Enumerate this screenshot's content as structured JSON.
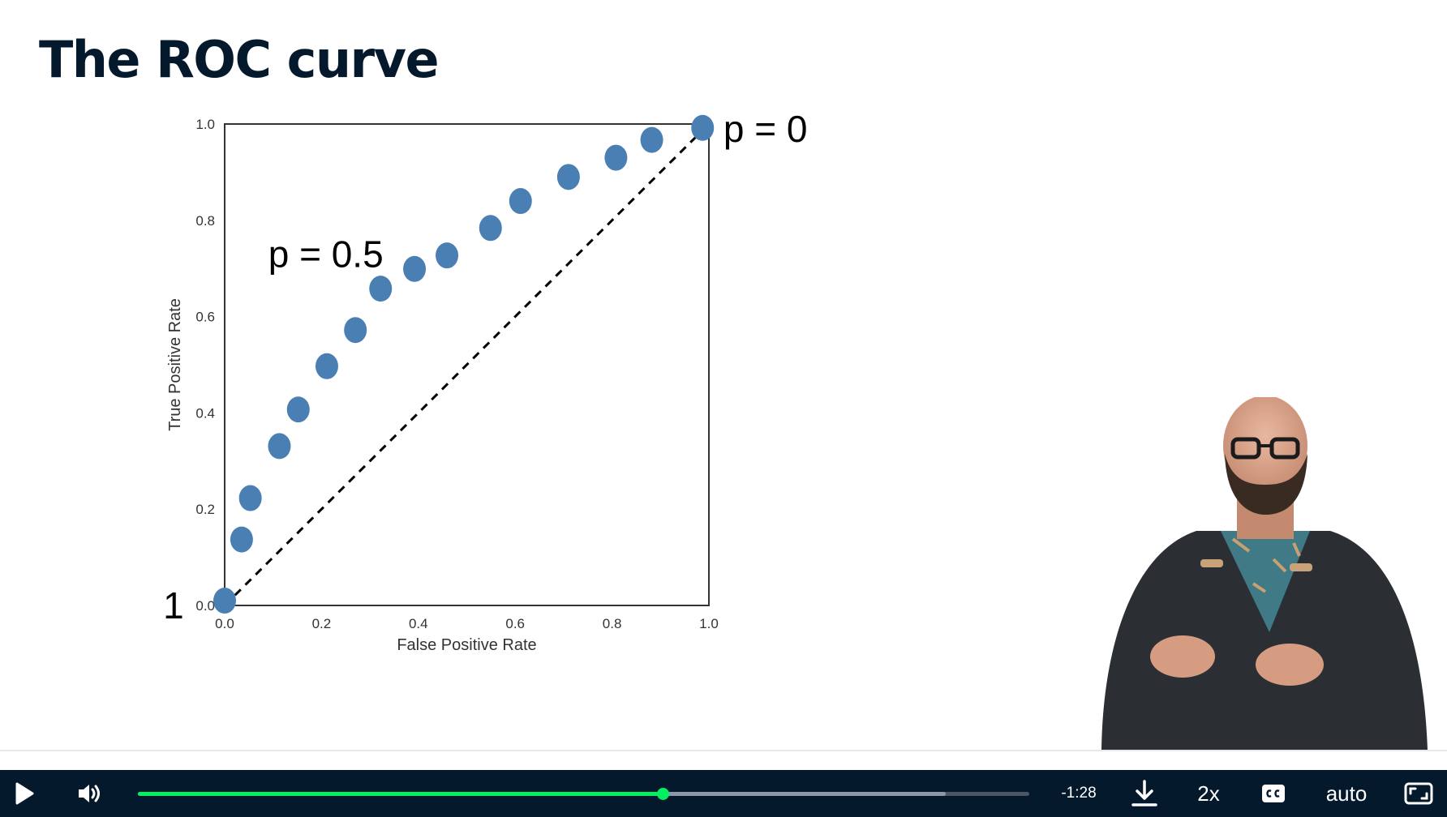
{
  "slide": {
    "title": "The ROC curve"
  },
  "chart_data": {
    "type": "scatter",
    "xlabel": "False Positive Rate",
    "ylabel": "True Positive Rate",
    "xlim": [
      0.0,
      1.0
    ],
    "ylim": [
      0.0,
      1.0
    ],
    "x_ticks": [
      "0.0",
      "0.2",
      "0.4",
      "0.6",
      "0.8",
      "1.0"
    ],
    "y_ticks": [
      "0.0",
      "0.2",
      "0.4",
      "0.6",
      "0.8",
      "1.0"
    ],
    "grid": false,
    "series": [
      {
        "color": "#4a7fb4",
        "x": [
          0.0,
          0.035,
          0.053,
          0.113,
          0.152,
          0.211,
          0.27,
          0.322,
          0.392,
          0.459,
          0.549,
          0.611,
          0.71,
          0.808,
          0.882,
          0.987
        ],
        "y": [
          0.01,
          0.137,
          0.223,
          0.331,
          0.407,
          0.497,
          0.572,
          0.658,
          0.699,
          0.727,
          0.784,
          0.84,
          0.89,
          0.93,
          0.967,
          0.992
        ]
      }
    ],
    "reference_line": {
      "from": [
        0.0,
        0.0
      ],
      "to": [
        1.0,
        1.0
      ],
      "style": "dashed",
      "color": "#000000"
    },
    "annotations": [
      {
        "text": "p = 0",
        "x": 1.03,
        "y": 0.99
      },
      {
        "text": "p = 0.5",
        "x": 0.09,
        "y": 0.73
      },
      {
        "text": "1",
        "x": -0.127,
        "y": 0.0
      }
    ]
  },
  "player": {
    "time_remaining": "-1:28",
    "speed": "2x",
    "quality": "auto",
    "progress_played": 0.589,
    "progress_buffered": 0.906,
    "accent_color": "#03ef62",
    "bar_color": "#05192d",
    "icons": [
      "play-icon",
      "volume-icon",
      "download-icon",
      "captions-icon",
      "fullscreen-icon"
    ]
  }
}
